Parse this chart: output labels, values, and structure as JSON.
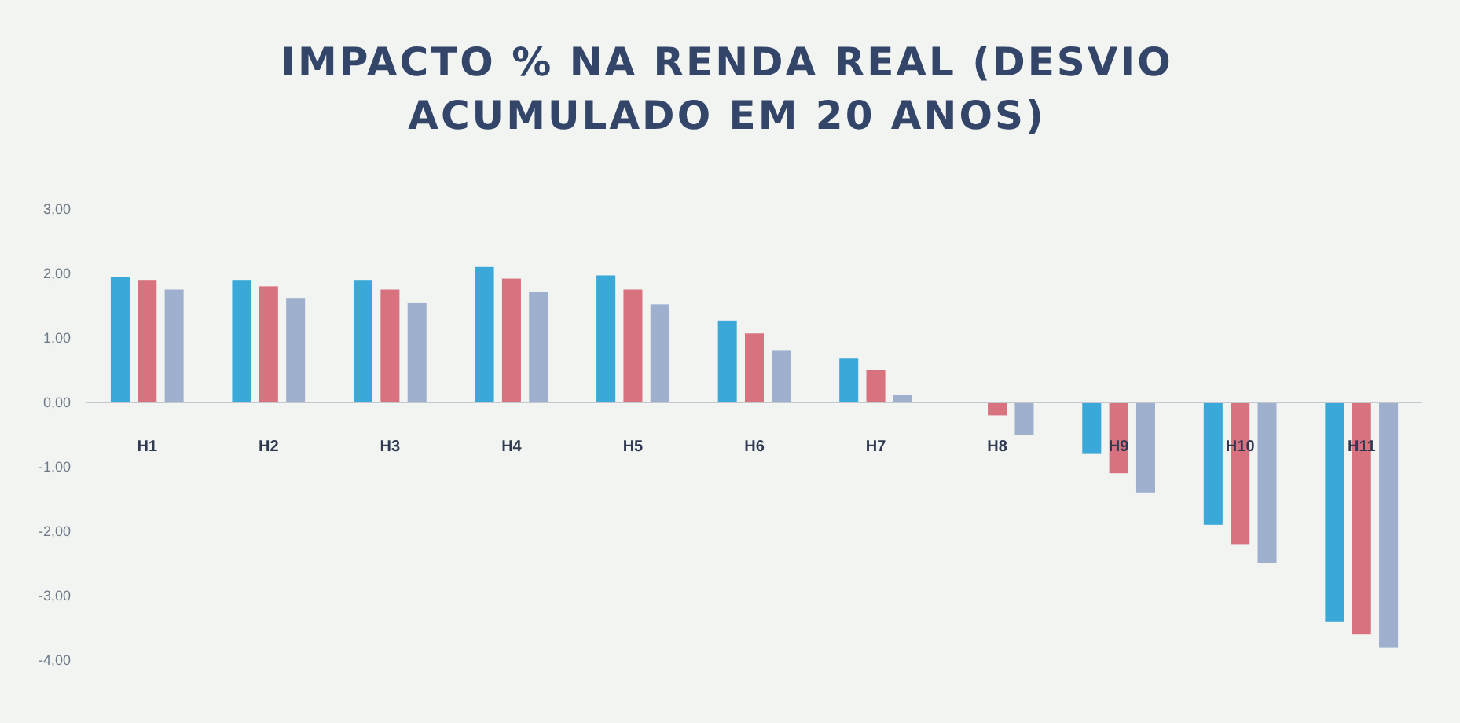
{
  "chart_data": {
    "type": "bar",
    "title": "IMPACTO % NA RENDA REAL (DESVIO ACUMULADO EM 20 ANOS)",
    "categories": [
      "H1",
      "H2",
      "H3",
      "H4",
      "H5",
      "H6",
      "H7",
      "H8",
      "H9",
      "H10",
      "H11"
    ],
    "series": [
      {
        "color": "#3aa8d8",
        "values": [
          1.95,
          1.9,
          1.9,
          2.1,
          1.97,
          1.27,
          0.68,
          null,
          -0.8,
          -1.9,
          -3.4
        ]
      },
      {
        "color": "#d9727f",
        "values": [
          1.9,
          1.8,
          1.75,
          1.92,
          1.75,
          1.07,
          0.5,
          -0.2,
          -1.1,
          -2.2,
          -3.6
        ]
      },
      {
        "color": "#9fb0cf",
        "values": [
          1.75,
          1.62,
          1.55,
          1.72,
          1.52,
          0.8,
          0.12,
          -0.5,
          -1.4,
          -2.5,
          -3.8
        ]
      }
    ],
    "ylim": [
      -4,
      3
    ],
    "yticks": [
      {
        "value": 3,
        "label": "3,00"
      },
      {
        "value": 2,
        "label": "2,00"
      },
      {
        "value": 1,
        "label": "1,00"
      },
      {
        "value": 0,
        "label": "0,00"
      },
      {
        "value": -1,
        "label": "-1,00"
      },
      {
        "value": -2,
        "label": "-2,00"
      },
      {
        "value": -3,
        "label": "-3,00"
      },
      {
        "value": -4,
        "label": "-4,00"
      }
    ]
  }
}
